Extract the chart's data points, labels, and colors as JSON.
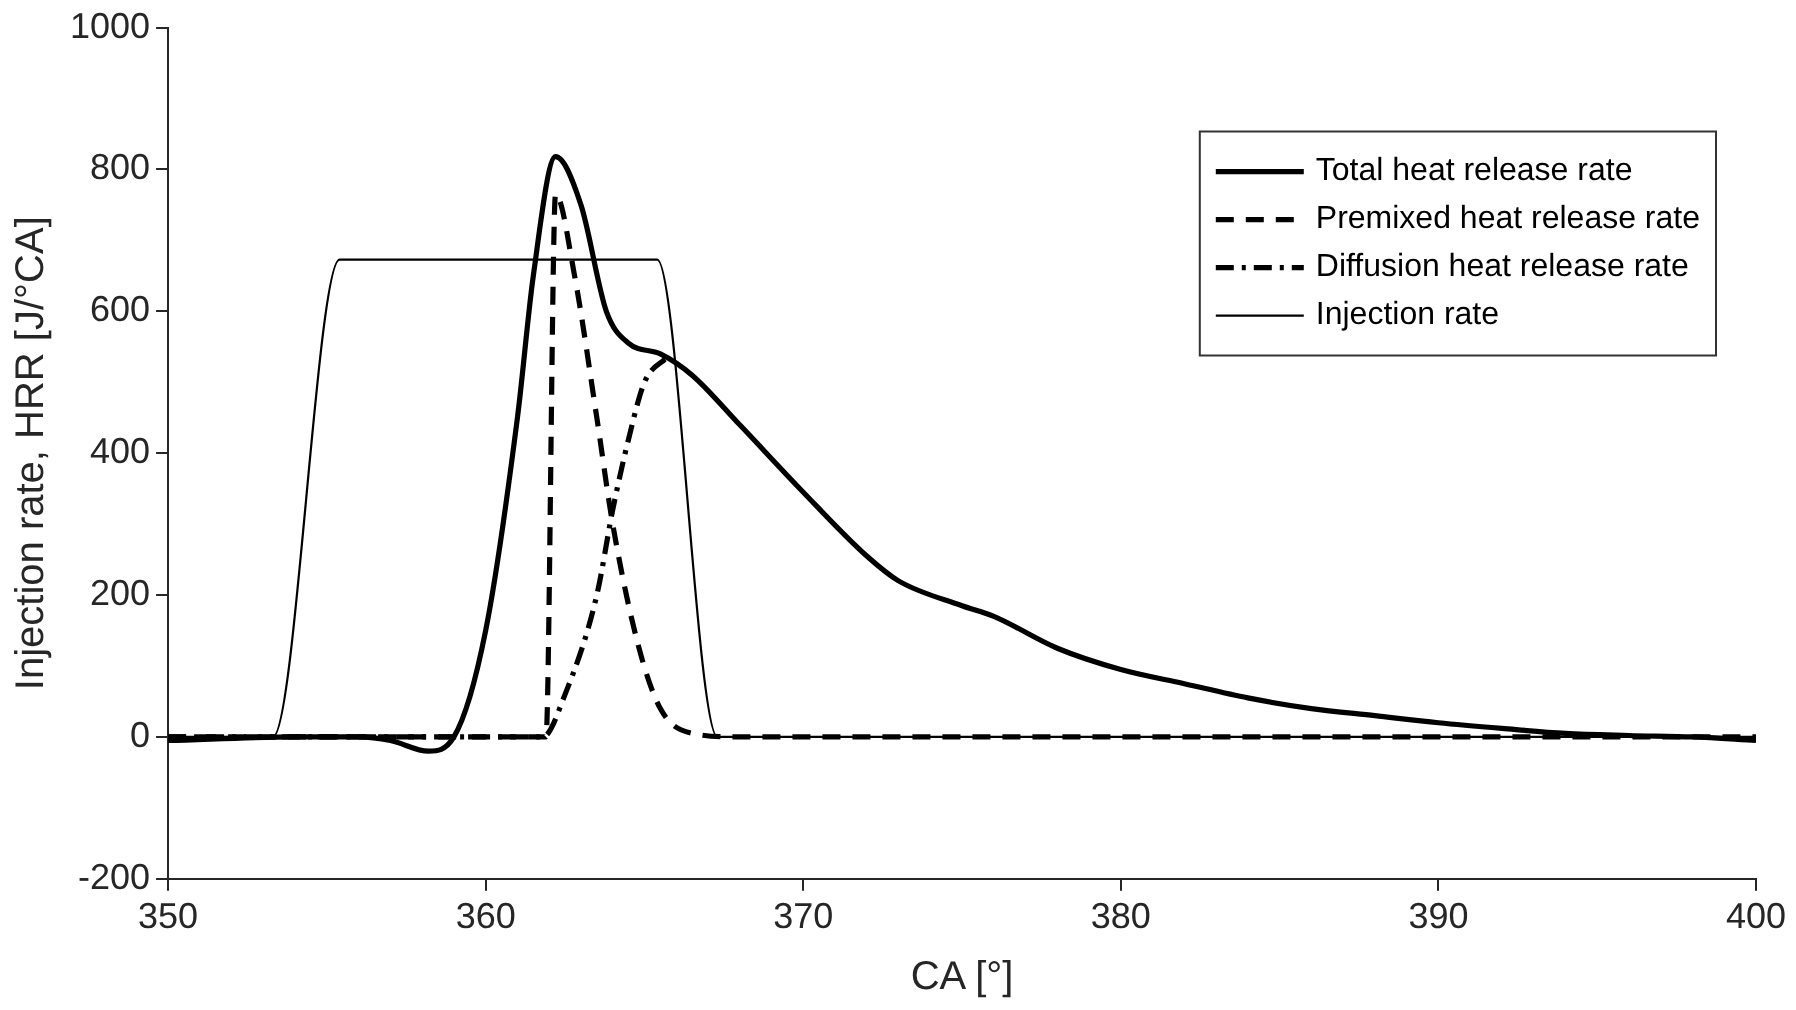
{
  "chart_data": {
    "type": "line",
    "xlabel": "CA [°]",
    "ylabel": "Injection rate, HRR [J/°CA]",
    "xlim": [
      350,
      400
    ],
    "xticks": [
      350,
      360,
      370,
      380,
      390,
      400
    ],
    "ylim": [
      -200,
      1000
    ],
    "yticks": [
      -200,
      0,
      200,
      400,
      600,
      800,
      1000
    ],
    "grid": false,
    "legend": "top right",
    "marker": "none",
    "series": [
      {
        "name": "Total heat release rate",
        "color": "#000000",
        "line_style": "solid",
        "x": [
          350,
          354,
          356,
          357,
          358.2,
          359,
          360,
          361,
          361.5,
          362.2,
          363,
          363.8,
          364.5,
          365.5,
          366.5,
          368,
          370,
          372,
          373,
          375,
          376,
          378,
          380,
          382,
          384,
          386,
          388,
          390,
          392,
          394,
          396,
          398,
          400
        ],
        "values": [
          -5,
          0,
          0,
          -5,
          -20,
          0,
          150,
          450,
          650,
          818,
          750,
          600,
          555,
          540,
          510,
          440,
          345,
          255,
          220,
          185,
          170,
          125,
          95,
          75,
          55,
          40,
          30,
          20,
          12,
          5,
          2,
          0,
          -5
        ]
      },
      {
        "name": "Premixed heat release rate",
        "color": "#000000",
        "line_style": "dashed",
        "x": [
          350,
          361.9,
          362.2,
          362.8,
          363.5,
          364,
          364.8,
          365.5,
          366.5,
          368,
          400
        ],
        "values": [
          0,
          0,
          765,
          650,
          450,
          300,
          130,
          40,
          5,
          0,
          0
        ]
      },
      {
        "name": "Diffusion heat release rate",
        "color": "#000000",
        "line_style": "dashdot",
        "x": [
          350,
          361.8,
          362.5,
          363.5,
          364,
          364.5,
          365,
          365.7
        ],
        "values": [
          0,
          0,
          60,
          200,
          320,
          420,
          500,
          535
        ]
      },
      {
        "name": "Injection rate",
        "color": "#000000",
        "line_style": "solid",
        "x": [
          350,
          353.3,
          355.4,
          365.4,
          367.3,
          400
        ],
        "values": [
          0,
          0,
          673,
          673,
          0,
          0
        ]
      }
    ]
  }
}
